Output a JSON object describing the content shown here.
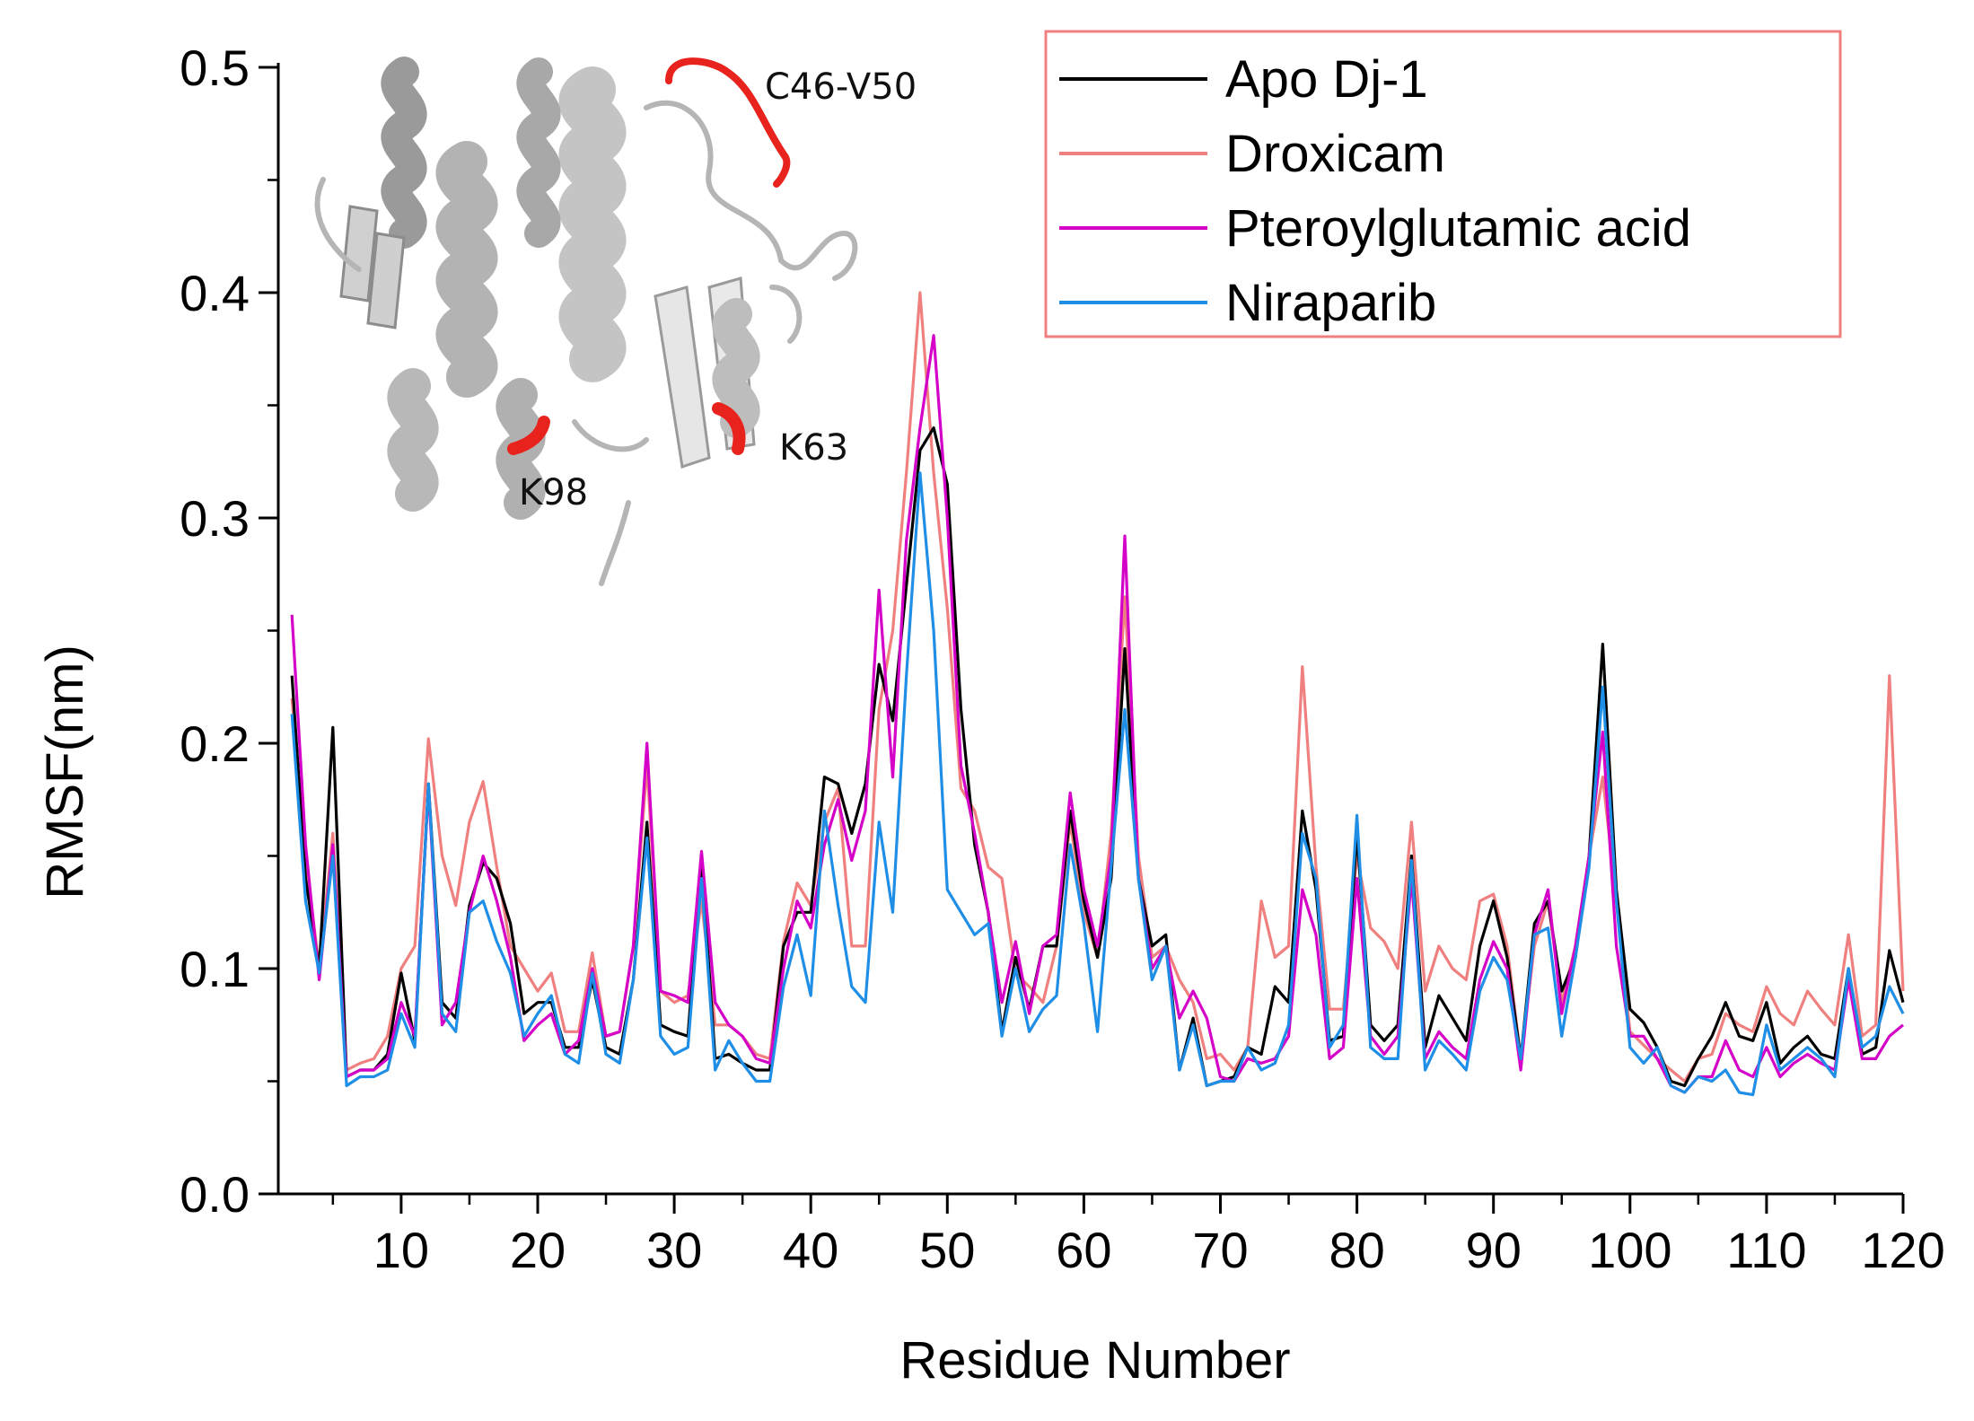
{
  "chart_data": {
    "type": "line",
    "title": "",
    "xlabel": "Residue Number",
    "ylabel": "RMSF(nm)",
    "xlim": [
      1,
      120
    ],
    "ylim": [
      0.0,
      0.5
    ],
    "xticks": [
      10,
      20,
      30,
      40,
      50,
      60,
      70,
      80,
      90,
      100,
      110,
      120
    ],
    "yticks": [
      0.0,
      0.1,
      0.2,
      0.3,
      0.4,
      0.5
    ],
    "ytick_labels": [
      "0.0",
      "0.1",
      "0.2",
      "0.3",
      "0.4",
      "0.5"
    ],
    "legend_position": "top-right",
    "legend_border_color": "#f07f7f",
    "x": [
      2,
      3,
      4,
      5,
      6,
      7,
      8,
      9,
      10,
      11,
      12,
      13,
      14,
      15,
      16,
      17,
      18,
      19,
      20,
      21,
      22,
      23,
      24,
      25,
      26,
      27,
      28,
      29,
      30,
      31,
      32,
      33,
      34,
      35,
      36,
      37,
      38,
      39,
      40,
      41,
      42,
      43,
      44,
      45,
      46,
      47,
      48,
      49,
      50,
      51,
      52,
      53,
      54,
      55,
      56,
      57,
      58,
      59,
      60,
      61,
      62,
      63,
      64,
      65,
      66,
      67,
      68,
      69,
      70,
      71,
      72,
      73,
      74,
      75,
      76,
      77,
      78,
      79,
      80,
      81,
      82,
      83,
      84,
      85,
      86,
      87,
      88,
      89,
      90,
      91,
      92,
      93,
      94,
      95,
      96,
      97,
      98,
      99,
      100,
      101,
      102,
      103,
      104,
      105,
      106,
      107,
      108,
      109,
      110,
      111,
      112,
      113,
      114,
      115,
      116,
      117,
      118,
      119,
      120
    ],
    "series": [
      {
        "name": "Apo Dj-1",
        "color": "#000000",
        "values": [
          0.23,
          0.14,
          0.1,
          0.207,
          0.052,
          0.055,
          0.055,
          0.062,
          0.098,
          0.068,
          0.182,
          0.085,
          0.078,
          0.128,
          0.147,
          0.14,
          0.12,
          0.08,
          0.085,
          0.085,
          0.065,
          0.065,
          0.095,
          0.065,
          0.062,
          0.095,
          0.165,
          0.075,
          0.072,
          0.07,
          0.148,
          0.06,
          0.062,
          0.058,
          0.055,
          0.055,
          0.11,
          0.125,
          0.125,
          0.185,
          0.182,
          0.16,
          0.182,
          0.235,
          0.21,
          0.27,
          0.33,
          0.34,
          0.315,
          0.215,
          0.155,
          0.125,
          0.072,
          0.105,
          0.082,
          0.11,
          0.11,
          0.17,
          0.13,
          0.105,
          0.14,
          0.242,
          0.14,
          0.11,
          0.115,
          0.055,
          0.078,
          0.048,
          0.05,
          0.052,
          0.065,
          0.062,
          0.092,
          0.085,
          0.17,
          0.135,
          0.068,
          0.07,
          0.16,
          0.075,
          0.068,
          0.075,
          0.15,
          0.065,
          0.088,
          0.078,
          0.068,
          0.11,
          0.13,
          0.105,
          0.06,
          0.12,
          0.13,
          0.09,
          0.105,
          0.15,
          0.244,
          0.135,
          0.082,
          0.076,
          0.065,
          0.05,
          0.048,
          0.06,
          0.07,
          0.085,
          0.07,
          0.068,
          0.085,
          0.058,
          0.065,
          0.07,
          0.062,
          0.06,
          0.1,
          0.062,
          0.065,
          0.108,
          0.085
        ]
      },
      {
        "name": "Droxicam",
        "color": "#f07f7f",
        "values": [
          0.22,
          0.15,
          0.1,
          0.16,
          0.055,
          0.058,
          0.06,
          0.07,
          0.1,
          0.11,
          0.202,
          0.15,
          0.128,
          0.165,
          0.183,
          0.145,
          0.11,
          0.1,
          0.09,
          0.098,
          0.072,
          0.072,
          0.107,
          0.07,
          0.072,
          0.11,
          0.19,
          0.09,
          0.085,
          0.088,
          0.13,
          0.075,
          0.075,
          0.07,
          0.062,
          0.06,
          0.112,
          0.138,
          0.128,
          0.165,
          0.18,
          0.11,
          0.11,
          0.215,
          0.25,
          0.32,
          0.4,
          0.32,
          0.26,
          0.18,
          0.17,
          0.145,
          0.14,
          0.098,
          0.092,
          0.085,
          0.11,
          0.165,
          0.125,
          0.105,
          0.16,
          0.265,
          0.15,
          0.105,
          0.11,
          0.095,
          0.085,
          0.06,
          0.062,
          0.055,
          0.065,
          0.13,
          0.105,
          0.11,
          0.234,
          0.145,
          0.082,
          0.082,
          0.15,
          0.118,
          0.112,
          0.1,
          0.165,
          0.09,
          0.11,
          0.1,
          0.095,
          0.13,
          0.133,
          0.11,
          0.06,
          0.11,
          0.13,
          0.085,
          0.11,
          0.15,
          0.185,
          0.13,
          0.072,
          0.066,
          0.06,
          0.055,
          0.05,
          0.06,
          0.062,
          0.08,
          0.075,
          0.072,
          0.092,
          0.08,
          0.075,
          0.09,
          0.082,
          0.075,
          0.115,
          0.07,
          0.075,
          0.23,
          0.09
        ]
      },
      {
        "name": "Pteroylglutamic acid",
        "color": "#d400c8",
        "values": [
          0.257,
          0.155,
          0.095,
          0.155,
          0.052,
          0.055,
          0.055,
          0.06,
          0.085,
          0.07,
          0.18,
          0.075,
          0.085,
          0.125,
          0.15,
          0.13,
          0.105,
          0.068,
          0.075,
          0.08,
          0.062,
          0.068,
          0.1,
          0.07,
          0.072,
          0.11,
          0.2,
          0.09,
          0.088,
          0.085,
          0.152,
          0.085,
          0.075,
          0.07,
          0.06,
          0.058,
          0.1,
          0.13,
          0.118,
          0.155,
          0.175,
          0.148,
          0.17,
          0.268,
          0.185,
          0.29,
          0.34,
          0.381,
          0.3,
          0.19,
          0.16,
          0.125,
          0.085,
          0.112,
          0.08,
          0.11,
          0.115,
          0.178,
          0.135,
          0.11,
          0.15,
          0.292,
          0.14,
          0.1,
          0.11,
          0.078,
          0.09,
          0.078,
          0.052,
          0.05,
          0.06,
          0.058,
          0.06,
          0.07,
          0.135,
          0.115,
          0.06,
          0.065,
          0.14,
          0.07,
          0.062,
          0.07,
          0.14,
          0.06,
          0.072,
          0.065,
          0.06,
          0.095,
          0.112,
          0.1,
          0.055,
          0.115,
          0.135,
          0.08,
          0.11,
          0.15,
          0.205,
          0.11,
          0.07,
          0.07,
          0.06,
          0.048,
          0.045,
          0.052,
          0.052,
          0.068,
          0.055,
          0.052,
          0.065,
          0.052,
          0.058,
          0.062,
          0.058,
          0.055,
          0.095,
          0.06,
          0.06,
          0.07,
          0.075
        ]
      },
      {
        "name": "Niraparib",
        "color": "#1f8ee6",
        "values": [
          0.213,
          0.13,
          0.098,
          0.15,
          0.048,
          0.052,
          0.052,
          0.055,
          0.08,
          0.065,
          0.182,
          0.08,
          0.072,
          0.125,
          0.13,
          0.112,
          0.098,
          0.07,
          0.08,
          0.088,
          0.062,
          0.058,
          0.098,
          0.062,
          0.058,
          0.095,
          0.158,
          0.07,
          0.062,
          0.065,
          0.14,
          0.055,
          0.068,
          0.058,
          0.05,
          0.05,
          0.092,
          0.115,
          0.088,
          0.17,
          0.128,
          0.092,
          0.085,
          0.165,
          0.125,
          0.23,
          0.32,
          0.25,
          0.135,
          0.125,
          0.115,
          0.12,
          0.07,
          0.1,
          0.072,
          0.082,
          0.088,
          0.155,
          0.12,
          0.072,
          0.145,
          0.215,
          0.14,
          0.095,
          0.11,
          0.055,
          0.075,
          0.048,
          0.05,
          0.05,
          0.065,
          0.055,
          0.058,
          0.075,
          0.16,
          0.14,
          0.065,
          0.075,
          0.168,
          0.065,
          0.06,
          0.06,
          0.148,
          0.055,
          0.068,
          0.062,
          0.055,
          0.09,
          0.105,
          0.095,
          0.06,
          0.115,
          0.118,
          0.07,
          0.105,
          0.145,
          0.225,
          0.13,
          0.065,
          0.058,
          0.065,
          0.048,
          0.045,
          0.052,
          0.05,
          0.055,
          0.045,
          0.044,
          0.075,
          0.055,
          0.06,
          0.065,
          0.06,
          0.052,
          0.1,
          0.065,
          0.07,
          0.092,
          0.08
        ]
      }
    ],
    "inset_labels": [
      "C46-V50",
      "K63",
      "K98"
    ]
  }
}
